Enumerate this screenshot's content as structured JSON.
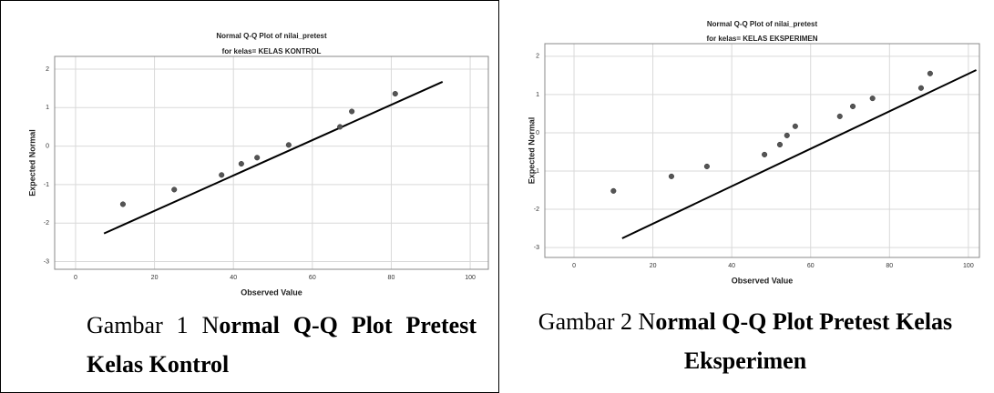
{
  "chart_data": [
    {
      "type": "scatter",
      "title": "Normal Q-Q Plot of nilai_pretest",
      "subtitle": "for kelas= KELAS KONTROL",
      "x_label": "Observed Value",
      "y_label": "Expected Normal",
      "x": [
        12,
        25,
        37,
        42,
        46,
        54,
        67,
        70,
        81
      ],
      "values": [
        -1.51,
        -1.13,
        -0.75,
        -0.46,
        -0.3,
        0.03,
        0.5,
        0.9,
        1.36
      ],
      "color": "#555555",
      "line": {
        "x": [
          7.2,
          93
        ],
        "y": [
          -2.27,
          1.67
        ],
        "color": "#000000"
      },
      "xlim": [
        -5.3,
        104.6
      ],
      "ylim": [
        -3.2,
        2.33
      ],
      "xticks": [
        0,
        20,
        40,
        60,
        80,
        100
      ],
      "yticks": [
        -3,
        -2,
        -1,
        0,
        1,
        2
      ],
      "grid": true
    },
    {
      "type": "scatter",
      "title": "Normal Q-Q Plot of nilai_pretest",
      "subtitle": "for kelas= KELAS EKSPERIMEN",
      "x_label": "Observed Value",
      "y_label": "Expected Normal",
      "x": [
        10,
        24.7,
        33.7,
        48.3,
        52.2,
        54,
        56.1,
        67.4,
        70.7,
        75.7,
        88,
        90.3
      ],
      "values": [
        -1.52,
        -1.14,
        -0.88,
        -0.57,
        -0.31,
        -0.07,
        0.17,
        0.43,
        0.69,
        0.9,
        1.17,
        1.55
      ],
      "color": "#555555",
      "line": {
        "x": [
          12.2,
          102
        ],
        "y": [
          -2.76,
          1.64
        ],
        "color": "#000000"
      },
      "xlim": [
        -7.4,
        102.8
      ],
      "ylim": [
        -3.26,
        2.33
      ],
      "xticks": [
        0,
        20,
        40,
        60,
        80,
        100
      ],
      "yticks": [
        -3,
        -2,
        -1,
        0,
        1,
        2
      ],
      "grid": true
    }
  ],
  "captions": [
    {
      "plain": "Gambar 1 N",
      "bold": "ormal Q-Q Plot Pretest Kelas Kontrol"
    },
    {
      "plain": "Gambar 2 N",
      "bold": "ormal Q-Q Plot Pretest Kelas Eksperimen"
    }
  ]
}
